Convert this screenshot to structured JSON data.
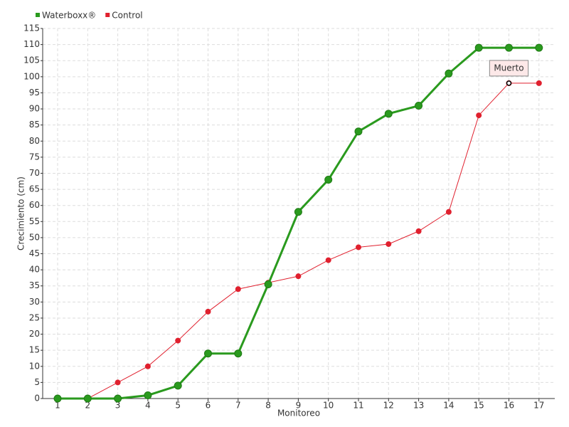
{
  "chart_data": {
    "type": "line",
    "x_label": "Monitoreo",
    "y_label": "Crecimiento (cm)",
    "categories": [
      "1",
      "2",
      "3",
      "4",
      "5",
      "6",
      "7",
      "8",
      "9",
      "10",
      "11",
      "12",
      "13",
      "14",
      "15",
      "16",
      "17"
    ],
    "series": [
      {
        "name": "Waterboxx®",
        "color": "#2a9a1e",
        "values": [
          0,
          0,
          0,
          1,
          4,
          14,
          14,
          35.5,
          58,
          68,
          83,
          88.5,
          91,
          101,
          109,
          109,
          109
        ]
      },
      {
        "name": "Control",
        "color": "#e0202e",
        "values": [
          0,
          0,
          5,
          10,
          18,
          27,
          34,
          36,
          38,
          43,
          47,
          48,
          52,
          58,
          88,
          98,
          98
        ]
      }
    ],
    "ylim": [
      0,
      115
    ],
    "yticks": [
      0,
      5,
      10,
      15,
      20,
      25,
      30,
      35,
      40,
      45,
      50,
      55,
      60,
      65,
      70,
      75,
      80,
      85,
      90,
      95,
      100,
      105,
      110,
      115
    ],
    "grid": true,
    "annotations": [
      {
        "label": "Muerto",
        "series": "Control",
        "category": "16"
      }
    ]
  }
}
